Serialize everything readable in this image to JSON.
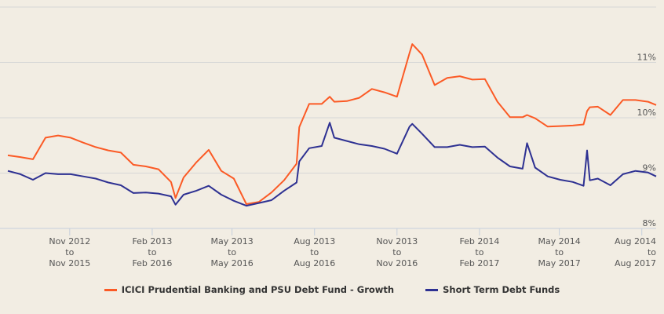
{
  "chart_data": {
    "type": "line",
    "title": "",
    "xlabel": "",
    "ylabel": "",
    "ylim": [
      8,
      12
    ],
    "y_ticks": [
      {
        "value": 8,
        "label": "8%"
      },
      {
        "value": 9,
        "label": "9%"
      },
      {
        "value": 10,
        "label": "10%"
      },
      {
        "value": 11,
        "label": "11%"
      },
      {
        "value": 12,
        "label": ""
      }
    ],
    "xlim": [
      "2012-08-24",
      "2014-08-17"
    ],
    "x_ticks": [
      {
        "date": "2012-11-01",
        "lines": [
          "Nov 2012",
          "to",
          "Nov 2015"
        ]
      },
      {
        "date": "2013-02-01",
        "lines": [
          "Feb 2013",
          "to",
          "Feb 2016"
        ]
      },
      {
        "date": "2013-05-01",
        "lines": [
          "May 2013",
          "to",
          "May 2016"
        ]
      },
      {
        "date": "2013-08-01",
        "lines": [
          "Aug 2013",
          "to",
          "Aug 2016"
        ]
      },
      {
        "date": "2013-11-01",
        "lines": [
          "Nov 2013",
          "to",
          "Nov 2016"
        ]
      },
      {
        "date": "2014-02-01",
        "lines": [
          "Feb 2014",
          "to",
          "Feb 2017"
        ]
      },
      {
        "date": "2014-05-01",
        "lines": [
          "May 2014",
          "to",
          "May 2017"
        ]
      },
      {
        "date": "2014-08-01",
        "lines": [
          "Aug 2014",
          "to",
          "Aug 2017"
        ]
      }
    ],
    "grid": "horizontal",
    "legend_placement": "bottom",
    "x": [
      "2012-08-24",
      "2012-09-07",
      "2012-09-21",
      "2012-10-05",
      "2012-10-19",
      "2012-11-02",
      "2012-11-16",
      "2012-11-30",
      "2012-12-14",
      "2012-12-28",
      "2013-01-11",
      "2013-01-25",
      "2013-02-08",
      "2013-02-22",
      "2013-02-27",
      "2013-03-08",
      "2013-03-22",
      "2013-04-05",
      "2013-04-19",
      "2013-05-03",
      "2013-05-17",
      "2013-05-31",
      "2013-06-14",
      "2013-06-28",
      "2013-07-12",
      "2013-07-15",
      "2013-07-26",
      "2013-08-09",
      "2013-08-18",
      "2013-08-23",
      "2013-09-06",
      "2013-09-20",
      "2013-10-04",
      "2013-10-18",
      "2013-11-01",
      "2013-11-15",
      "2013-11-18",
      "2013-11-29",
      "2013-12-13",
      "2013-12-27",
      "2014-01-10",
      "2014-01-24",
      "2014-02-07",
      "2014-02-21",
      "2014-03-07",
      "2014-03-21",
      "2014-03-26",
      "2014-04-04",
      "2014-04-18",
      "2014-05-02",
      "2014-05-16",
      "2014-05-28",
      "2014-06-01",
      "2014-06-04",
      "2014-06-13",
      "2014-06-27",
      "2014-07-11",
      "2014-07-25",
      "2014-08-08",
      "2014-08-17"
    ],
    "series": [
      {
        "name": "ICICI Prudential Banking and PSU Debt Fund - Growth",
        "color": "#fb5a25",
        "values": [
          9.32,
          9.29,
          9.25,
          9.64,
          9.68,
          9.64,
          9.55,
          9.47,
          9.41,
          9.37,
          9.15,
          9.12,
          9.07,
          8.84,
          8.55,
          8.92,
          9.19,
          9.42,
          9.04,
          8.9,
          8.44,
          8.48,
          8.65,
          8.87,
          9.17,
          9.83,
          10.25,
          10.25,
          10.38,
          10.29,
          10.3,
          10.36,
          10.52,
          10.46,
          10.38,
          11.17,
          11.33,
          11.14,
          10.59,
          10.72,
          10.75,
          10.69,
          10.7,
          10.29,
          10.01,
          10.01,
          10.05,
          9.99,
          9.84,
          9.85,
          9.86,
          9.88,
          10.12,
          10.19,
          10.2,
          10.05,
          10.32,
          10.32,
          10.29,
          10.23
        ]
      },
      {
        "name": "Short Term Debt Funds",
        "color": "#2e3192",
        "values": [
          9.04,
          8.98,
          8.88,
          9.0,
          8.98,
          8.98,
          8.94,
          8.9,
          8.83,
          8.78,
          8.64,
          8.65,
          8.63,
          8.58,
          8.43,
          8.61,
          8.68,
          8.77,
          8.61,
          8.5,
          8.41,
          8.46,
          8.51,
          8.68,
          8.83,
          9.21,
          9.45,
          9.49,
          9.91,
          9.64,
          9.58,
          9.52,
          9.49,
          9.44,
          9.35,
          9.84,
          9.89,
          9.71,
          9.47,
          9.47,
          9.51,
          9.47,
          9.48,
          9.28,
          9.12,
          9.08,
          9.54,
          9.1,
          8.94,
          8.88,
          8.84,
          8.77,
          9.41,
          8.87,
          8.9,
          8.78,
          8.98,
          9.04,
          9.01,
          8.94
        ]
      }
    ]
  },
  "legend": {
    "items": [
      {
        "label": "ICICI Prudential Banking and PSU Debt Fund - Growth",
        "color": "#fb5a25"
      },
      {
        "label": "Short Term Debt Funds",
        "color": "#2e3192"
      }
    ]
  }
}
